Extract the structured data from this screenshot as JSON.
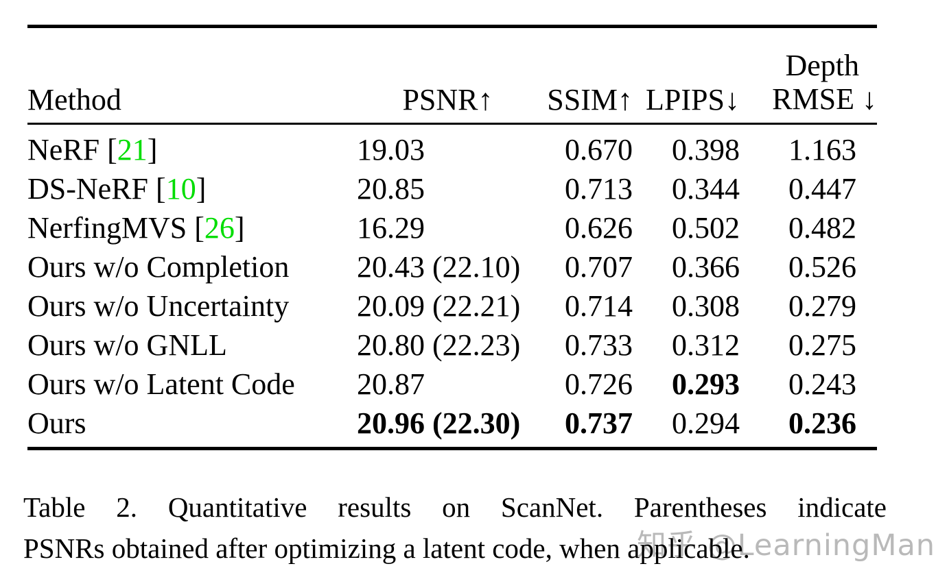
{
  "colors": {
    "citation_green": "#00dd00",
    "watermark_gray": "#b9b9b9",
    "text_black": "#000000"
  },
  "table": {
    "columns": [
      {
        "label": "Method"
      },
      {
        "label": "PSNR↑"
      },
      {
        "label": "SSIM↑"
      },
      {
        "label": "LPIPS↓"
      },
      {
        "label_line1": "Depth",
        "label_line2": "RMSE ↓"
      }
    ],
    "rows": [
      {
        "method": "NeRF",
        "cite": "21",
        "psnr": "19.03",
        "psnr_paren": "",
        "ssim": "0.670",
        "lpips": "0.398",
        "rmse": "1.163",
        "bold": []
      },
      {
        "method": "DS-NeRF",
        "cite": "10",
        "psnr": "20.85",
        "psnr_paren": "",
        "ssim": "0.713",
        "lpips": "0.344",
        "rmse": "0.447",
        "bold": []
      },
      {
        "method": "NerfingMVS",
        "cite": "26",
        "psnr": "16.29",
        "psnr_paren": "",
        "ssim": "0.626",
        "lpips": "0.502",
        "rmse": "0.482",
        "bold": []
      },
      {
        "method": "Ours w/o Completion",
        "cite": null,
        "psnr": "20.43",
        "psnr_paren": "(22.10)",
        "ssim": "0.707",
        "lpips": "0.366",
        "rmse": "0.526",
        "bold": []
      },
      {
        "method": "Ours w/o Uncertainty",
        "cite": null,
        "psnr": "20.09",
        "psnr_paren": "(22.21)",
        "ssim": "0.714",
        "lpips": "0.308",
        "rmse": "0.279",
        "bold": []
      },
      {
        "method": "Ours w/o GNLL",
        "cite": null,
        "psnr": "20.80",
        "psnr_paren": "(22.23)",
        "ssim": "0.733",
        "lpips": "0.312",
        "rmse": "0.275",
        "bold": []
      },
      {
        "method": "Ours w/o Latent Code",
        "cite": null,
        "psnr": "20.87",
        "psnr_paren": "",
        "ssim": "0.726",
        "lpips": "0.293",
        "rmse": "0.243",
        "bold": [
          "lpips"
        ]
      },
      {
        "method": "Ours",
        "cite": null,
        "psnr": "20.96",
        "psnr_paren": "(22.30)",
        "ssim": "0.737",
        "lpips": "0.294",
        "rmse": "0.236",
        "bold": [
          "psnr",
          "psnr_paren",
          "ssim",
          "rmse"
        ]
      }
    ]
  },
  "caption": {
    "line1": "Table 2.  Quantitative results on ScanNet.  Parentheses indicate",
    "line2": "PSNRs obtained after optimizing a latent code, when applicable."
  },
  "watermark": {
    "text": "知乎 @LearningMan"
  }
}
